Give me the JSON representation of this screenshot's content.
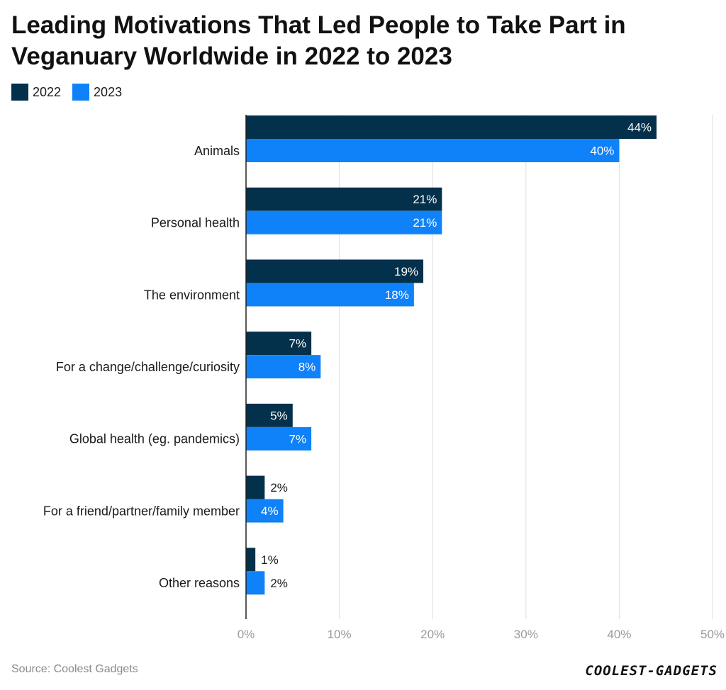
{
  "title": "Leading Motivations That Led People to Take Part in Veganuary Worldwide in 2022 to 2023",
  "source": "Source: Coolest Gadgets",
  "logo_text": "COOLEST-GADGETS",
  "colors": {
    "series_2022": "#03304a",
    "series_2023": "#0f82fa",
    "grid": "#dddddd",
    "axis": "#222222",
    "tick": "#9a9a9a"
  },
  "chart_data": {
    "type": "bar",
    "orientation": "horizontal",
    "categories": [
      "Animals",
      "Personal health",
      "The environment",
      "For a change/challenge/curiosity",
      "Global health (eg. pandemics)",
      "For a friend/partner/family member",
      "Other reasons"
    ],
    "series": [
      {
        "name": "2022",
        "values": [
          44,
          21,
          19,
          7,
          5,
          2,
          1
        ],
        "labels": [
          "44%",
          "21%",
          "19%",
          "7%",
          "5%",
          "2%",
          "1%"
        ]
      },
      {
        "name": "2023",
        "values": [
          40,
          21,
          18,
          8,
          7,
          4,
          2
        ],
        "labels": [
          "40%",
          "21%",
          "18%",
          "8%",
          "7%",
          "4%",
          "2%"
        ]
      }
    ],
    "xlim": [
      0,
      50
    ],
    "xticks": [
      0,
      10,
      20,
      30,
      40,
      50
    ],
    "xtick_labels": [
      "0%",
      "10%",
      "20%",
      "30%",
      "40%",
      "50%"
    ],
    "grid": true,
    "legend_position": "top-left"
  }
}
